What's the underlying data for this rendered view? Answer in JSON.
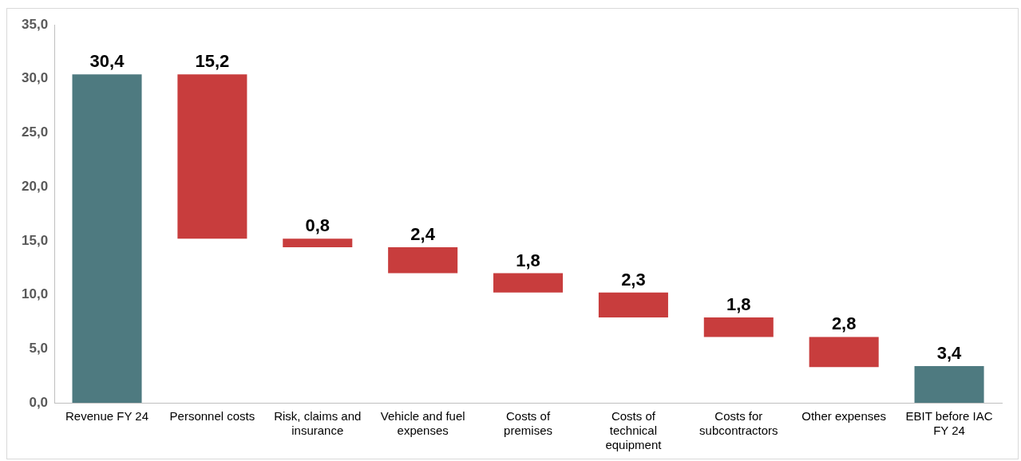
{
  "chart_data": {
    "type": "bar",
    "categories": [
      "Revenue FY 24",
      "Personnel costs",
      "Risk, claims and insurance",
      "Vehicle and fuel expenses",
      "Costs of premises",
      "Costs of technical equipment",
      "Costs for subcontractors",
      "Other expenses",
      "EBIT before IAC FY 24"
    ],
    "values": [
      30.4,
      15.2,
      0.8,
      2.4,
      1.8,
      2.3,
      1.8,
      2.8,
      3.4
    ],
    "base": [
      0,
      15.2,
      14.4,
      12.0,
      10.2,
      7.9,
      6.1,
      3.3,
      0
    ],
    "colors": [
      "#4e7a80",
      "#c83d3d",
      "#c83d3d",
      "#c83d3d",
      "#c83d3d",
      "#c83d3d",
      "#c83d3d",
      "#c83d3d",
      "#4e7a80"
    ],
    "value_labels": [
      "30,4",
      "15,2",
      "0,8",
      "2,4",
      "1,8",
      "2,3",
      "1,8",
      "2,8",
      "3,4"
    ],
    "ylim": [
      0,
      35
    ],
    "yticks": [
      {
        "value": 0,
        "label": "0,0"
      },
      {
        "value": 5,
        "label": "5,0"
      },
      {
        "value": 10,
        "label": "10,0"
      },
      {
        "value": 15,
        "label": "15,0"
      },
      {
        "value": 20,
        "label": "20,0"
      },
      {
        "value": 25,
        "label": "25,0"
      },
      {
        "value": 30,
        "label": "30,0"
      },
      {
        "value": 35,
        "label": "35,0"
      }
    ],
    "grid": false,
    "legend": false
  }
}
